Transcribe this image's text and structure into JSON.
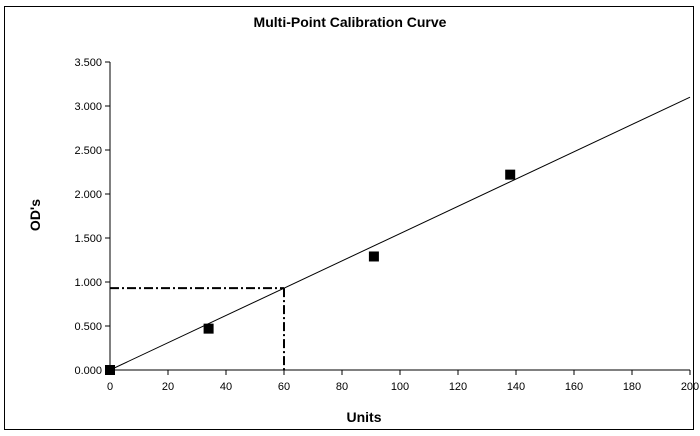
{
  "chart_data": {
    "type": "scatter",
    "title": "Multi-Point Calibration Curve",
    "xlabel": "Units",
    "ylabel": "OD's",
    "xlim": [
      0,
      200
    ],
    "ylim": [
      0,
      3.5
    ],
    "x_ticks": [
      "0",
      "20",
      "40",
      "60",
      "80",
      "100",
      "120",
      "140",
      "160",
      "180",
      "200"
    ],
    "y_ticks": [
      "0.000",
      "0.500",
      "1.000",
      "1.500",
      "2.000",
      "2.500",
      "3.000",
      "3.500"
    ],
    "x_tick_values": [
      0,
      20,
      40,
      60,
      80,
      100,
      120,
      140,
      160,
      180,
      200
    ],
    "y_tick_values": [
      0,
      0.5,
      1.0,
      1.5,
      2.0,
      2.5,
      3.0,
      3.5
    ],
    "points": [
      {
        "x": 0,
        "y": 0.0
      },
      {
        "x": 34,
        "y": 0.47
      },
      {
        "x": 91,
        "y": 1.29
      },
      {
        "x": 138,
        "y": 2.22
      }
    ],
    "fit_line": {
      "x": [
        0,
        200
      ],
      "y": [
        0,
        3.1
      ]
    },
    "readout": {
      "x": 60,
      "y": 0.93
    },
    "grid": false,
    "legend": "none",
    "colors": {
      "marker": "#000000",
      "line": "#000000"
    }
  }
}
